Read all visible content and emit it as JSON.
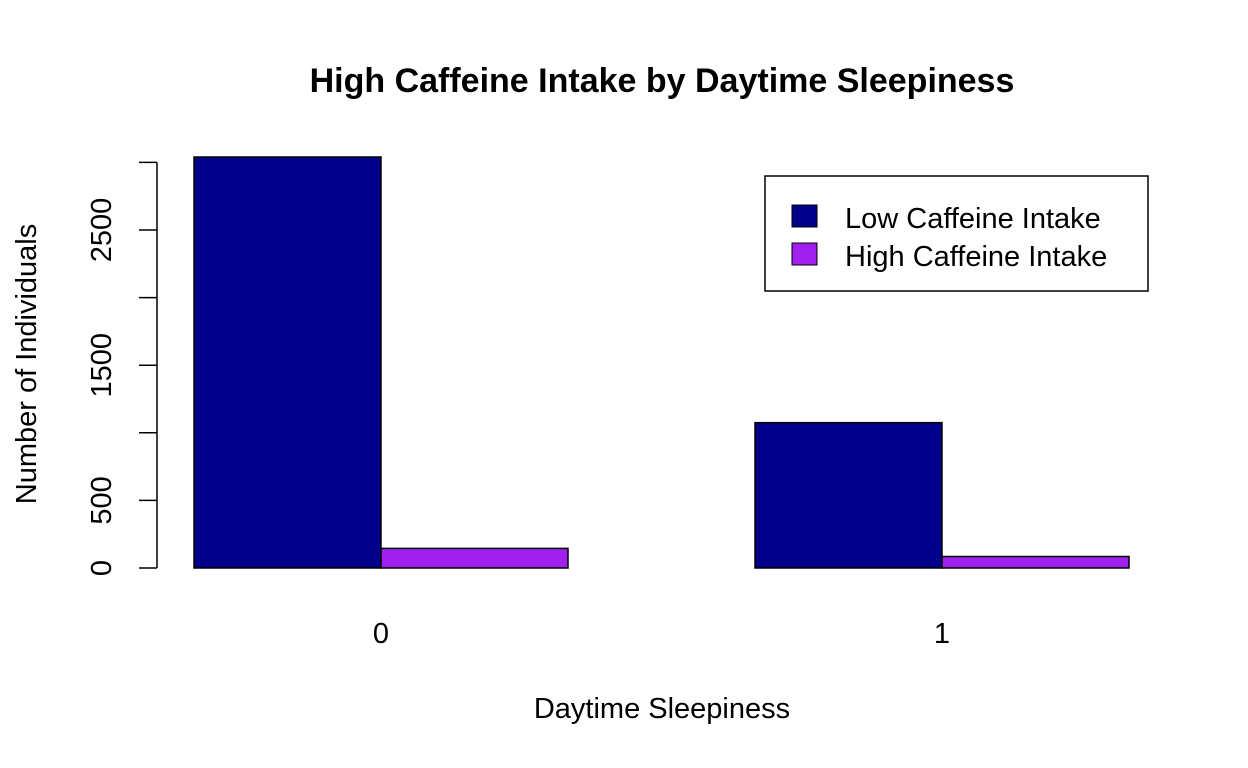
{
  "chart_data": {
    "type": "bar",
    "title": "High Caffeine Intake by Daytime Sleepiness",
    "xlabel": "Daytime Sleepiness",
    "ylabel": "Number of Individuals",
    "categories": [
      "0",
      "1"
    ],
    "series": [
      {
        "name": "Low Caffeine Intake",
        "color": "#00008B",
        "values": [
          3040,
          1075
        ]
      },
      {
        "name": "High Caffeine Intake",
        "color": "#A020F0",
        "values": [
          145,
          85
        ]
      }
    ],
    "ylim": [
      0,
      3040
    ],
    "yticks": [
      0,
      500,
      1000,
      1500,
      2000,
      2500,
      3000
    ],
    "ytick_labels": [
      "0",
      "500",
      "",
      "1500",
      "",
      "2500",
      ""
    ],
    "legend_position": "top-right",
    "grid": false
  }
}
